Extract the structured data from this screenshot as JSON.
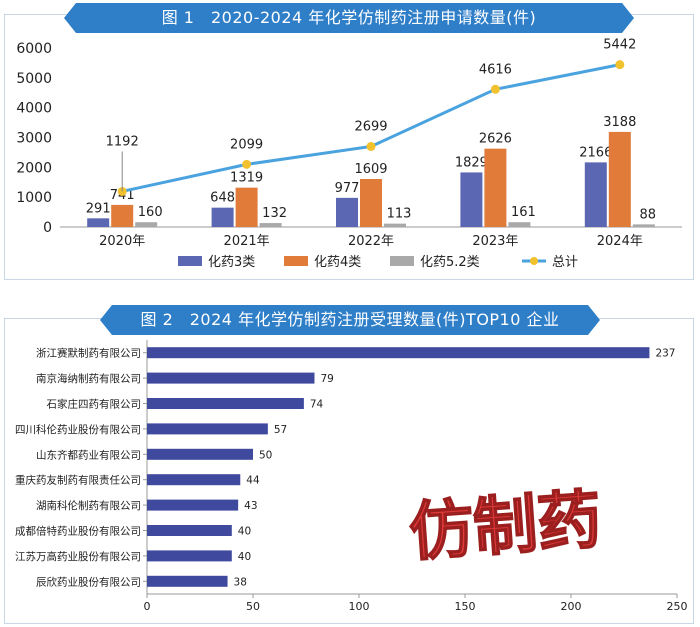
{
  "chart_data": [
    {
      "type": "bar+line",
      "title": "图 1　2020-2024 年化学仿制药注册申请数量(件)",
      "categories": [
        "2020年",
        "2021年",
        "2022年",
        "2023年",
        "2024年"
      ],
      "yticks": [
        0,
        1000,
        2000,
        3000,
        4000,
        5000,
        6000
      ],
      "ylim": [
        0,
        6000
      ],
      "series": [
        {
          "name": "化药3类",
          "type": "bar",
          "color": "#5b67b3",
          "values": [
            291,
            648,
            977,
            1829,
            2166
          ]
        },
        {
          "name": "化药4类",
          "type": "bar",
          "color": "#e07b39",
          "values": [
            741,
            1319,
            1609,
            2626,
            3188
          ]
        },
        {
          "name": "化药5.2类",
          "type": "bar",
          "color": "#a9a9a9",
          "values": [
            160,
            132,
            113,
            161,
            88
          ]
        },
        {
          "name": "总计",
          "type": "line",
          "color": "#4aa3df",
          "marker_color": "#f2c12e",
          "values": [
            1192,
            2099,
            2699,
            4616,
            5442
          ]
        }
      ],
      "legend": "bottom"
    },
    {
      "type": "bar",
      "orientation": "horizontal",
      "title": "图 2　2024 年化学仿制药注册受理数量(件)TOP10 企业",
      "categories": [
        "浙江赛默制药有限公司",
        "南京海纳制药有限公司",
        "石家庄四药有限公司",
        "四川科伦药业股份有限公司",
        "山东齐都药业有限公司",
        "重庆药友制药有限责任公司",
        "湖南科伦制药有限公司",
        "成都倍特药业股份有限公司",
        "江苏万高药业股份有限公司",
        "辰欣药业股份有限公司"
      ],
      "values": [
        237,
        79,
        74,
        57,
        50,
        44,
        43,
        40,
        40,
        38
      ],
      "xticks": [
        0,
        50,
        100,
        150,
        200,
        250
      ],
      "xlim": [
        0,
        250
      ],
      "color": "#3f4a9e",
      "decoration_text": "仿制药"
    }
  ]
}
